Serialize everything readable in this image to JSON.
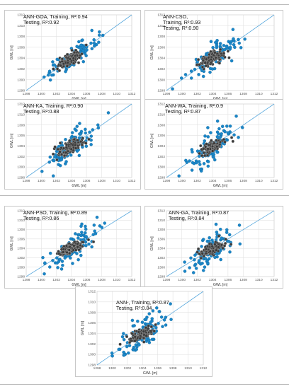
{
  "colors": {
    "training": "#1a86c8",
    "testing": "#3a3a3a",
    "fit_line": "#5aa9dd",
    "grid": "#e2e2e2"
  },
  "chart_data": [
    {
      "type": "scatter",
      "name": "ANN-GOA",
      "annotation": {
        "line1": "ANN-GOA, Training, R²:0.94",
        "line2": "Testing, R²:0.92"
      },
      "xlabel": "GWL [m]",
      "ylabel": "GWL [m]",
      "xlim": [
        1298,
        1312
      ],
      "ylim": [
        1298,
        1312
      ],
      "xticks": [
        "1298",
        "1300",
        "1302",
        "1304",
        "1306",
        "1308",
        "1310",
        "1312"
      ],
      "yticks": [
        "1298",
        "1300",
        "1302",
        "1304",
        "1306",
        "1308",
        "1310",
        "1312"
      ],
      "series": [
        "Training",
        "Testing"
      ],
      "grid": true,
      "legend": "none",
      "spread": 0.9
    },
    {
      "type": "scatter",
      "name": "ANN-CSO",
      "annotation": {
        "line1": "ANN-CSO,",
        "line2": "Training, R²:0.93",
        "line3": "Testing, R²:0.90"
      },
      "xlabel": "GWL [m]",
      "ylabel": "GWL [m]",
      "xlim": [
        1298,
        1312
      ],
      "ylim": [
        1298,
        1312
      ],
      "xticks": [
        "1298",
        "1300",
        "1302",
        "1304",
        "1306",
        "1308",
        "1310",
        "1312"
      ],
      "yticks": [
        "1298",
        "1300",
        "1302",
        "1304",
        "1306",
        "1308",
        "1310",
        "1312"
      ],
      "series": [
        "Training",
        "Testing"
      ],
      "grid": true,
      "legend": "none",
      "spread": 1.1
    },
    {
      "type": "scatter",
      "name": "ANN-KA",
      "annotation": {
        "line1": "ANN-KA, Training, R²:0.90",
        "line2": "Testing, R²:0.88"
      },
      "xlabel": "GWL [m]",
      "ylabel": "GWL [m]",
      "xlim": [
        1298,
        1312
      ],
      "ylim": [
        1298,
        1312
      ],
      "xticks": [
        "1298",
        "1300",
        "1302",
        "1304",
        "1306",
        "1308",
        "1310",
        "1312"
      ],
      "yticks": [
        "1298",
        "1300",
        "1302",
        "1304",
        "1306",
        "1308",
        "1310",
        "1312"
      ],
      "series": [
        "Training",
        "Testing"
      ],
      "grid": true,
      "legend": "none",
      "spread": 1.3
    },
    {
      "type": "scatter",
      "name": "ANN-WA",
      "annotation": {
        "line1": "ANN-WA, Training, R²:0.9",
        "line2": "Testing, R²:0.87"
      },
      "xlabel": "GWL [m]",
      "ylabel": "GWL [m]",
      "xlim": [
        1298,
        1312
      ],
      "ylim": [
        1298,
        1312
      ],
      "xticks": [
        "1298",
        "1300",
        "1302",
        "1304",
        "1306",
        "1308",
        "1310",
        "1312"
      ],
      "yticks": [
        "1298",
        "1300",
        "1302",
        "1304",
        "1306",
        "1308",
        "1310",
        "1312"
      ],
      "series": [
        "Training",
        "Testing"
      ],
      "grid": true,
      "legend": "none",
      "spread": 1.4
    },
    {
      "type": "scatter",
      "name": "ANN-PSO",
      "annotation": {
        "line1": "ANN-PSO, Training, R²:0.89",
        "line2": "Testing, R²:0.86"
      },
      "xlabel": "GWL [m]",
      "ylabel": "GWL [m]",
      "xlim": [
        1298,
        1312
      ],
      "ylim": [
        1298,
        1312
      ],
      "xticks": [
        "1298",
        "1300",
        "1302",
        "1304",
        "1306",
        "1308",
        "1310",
        "1312"
      ],
      "yticks": [
        "1298",
        "1300",
        "1302",
        "1304",
        "1306",
        "1308",
        "1310",
        "1312"
      ],
      "series": [
        "Training",
        "Testing"
      ],
      "grid": true,
      "legend": "none",
      "spread": 1.5
    },
    {
      "type": "scatter",
      "name": "ANN-GA",
      "annotation": {
        "line1": "ANN-GA, Training, R²:0.87",
        "line2": "Testing, R²:0.84"
      },
      "xlabel": "GWL [m]",
      "ylabel": "GWL [m]",
      "xlim": [
        1298,
        1312
      ],
      "ylim": [
        1298,
        1312
      ],
      "xticks": [
        "1298",
        "1300",
        "1302",
        "1304",
        "1306",
        "1308",
        "1310",
        "1312"
      ],
      "yticks": [
        "1298",
        "1300",
        "1302",
        "1304",
        "1306",
        "1308",
        "1310",
        "1312"
      ],
      "series": [
        "Training",
        "Testing"
      ],
      "grid": true,
      "legend": "none",
      "spread": 1.6
    },
    {
      "type": "scatter",
      "name": "ANN",
      "annotation": {
        "line1": "ANN-, Training, R²:0.87",
        "line2": "Testing, R²:0.84"
      },
      "xlabel": "GWL [m]",
      "ylabel": "GWL [m]",
      "xlim": [
        1298,
        1312
      ],
      "ylim": [
        1298,
        1312
      ],
      "xticks": [
        "1298",
        "1300",
        "1302",
        "1304",
        "1306",
        "1308",
        "1310",
        "1312"
      ],
      "yticks": [
        "1298",
        "1300",
        "1302",
        "1304",
        "1306",
        "1308",
        "1310",
        "1312"
      ],
      "series": [
        "Training",
        "Testing"
      ],
      "grid": true,
      "legend": "none",
      "spread": 1.6
    }
  ]
}
